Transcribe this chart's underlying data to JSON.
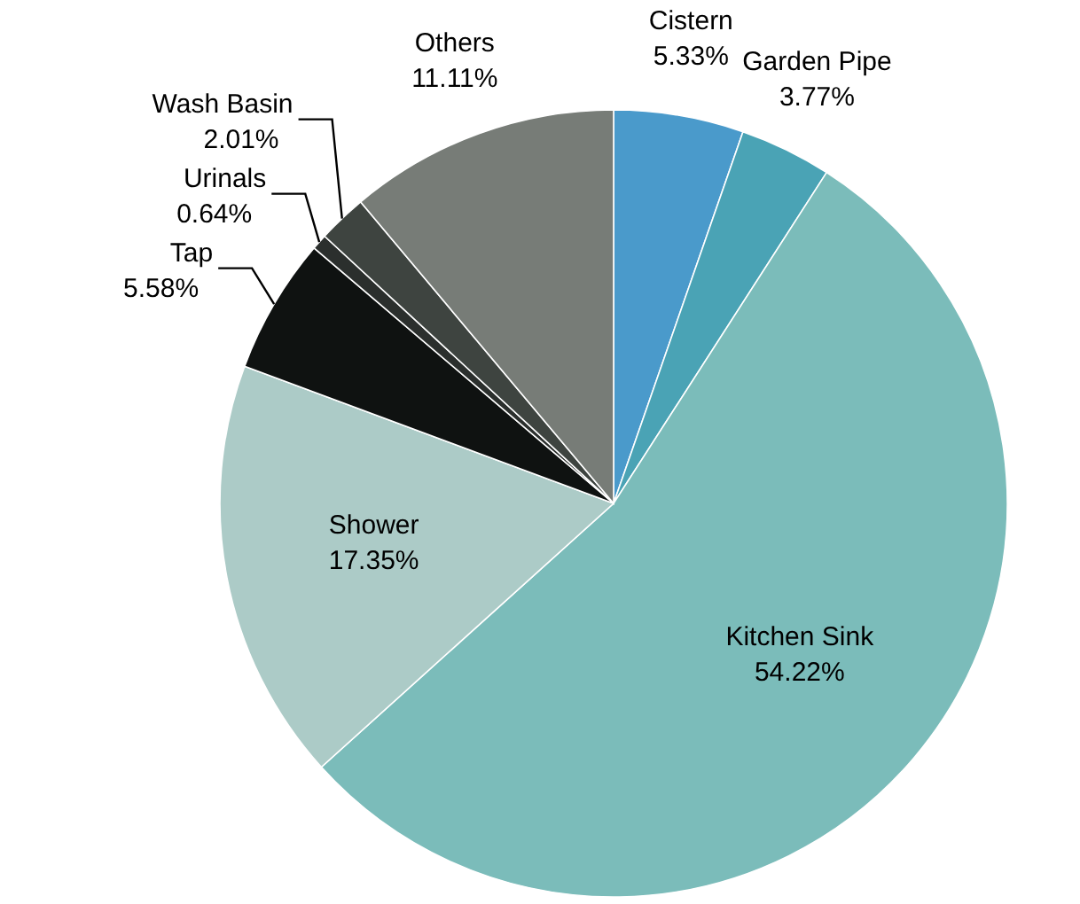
{
  "chart_data": {
    "type": "pie",
    "categories": [
      "Cistern",
      "Garden Pipe",
      "Kitchen Sink",
      "Shower",
      "Tap",
      "Urinals",
      "Wash Basin",
      "Others"
    ],
    "values": [
      5.33,
      3.77,
      54.22,
      17.35,
      5.58,
      0.64,
      2.01,
      11.11
    ],
    "colors": [
      "#4a9acb",
      "#4aa3b5",
      "#7bbcba",
      "#accbc7",
      "#0f1211",
      "#2b2f2d",
      "#3e4440",
      "#777c77"
    ],
    "value_labels": [
      "5.33%",
      "3.77%",
      "54.22%",
      "17.35%",
      "5.58%",
      "0.64%",
      "2.01%",
      "11.11%"
    ]
  }
}
